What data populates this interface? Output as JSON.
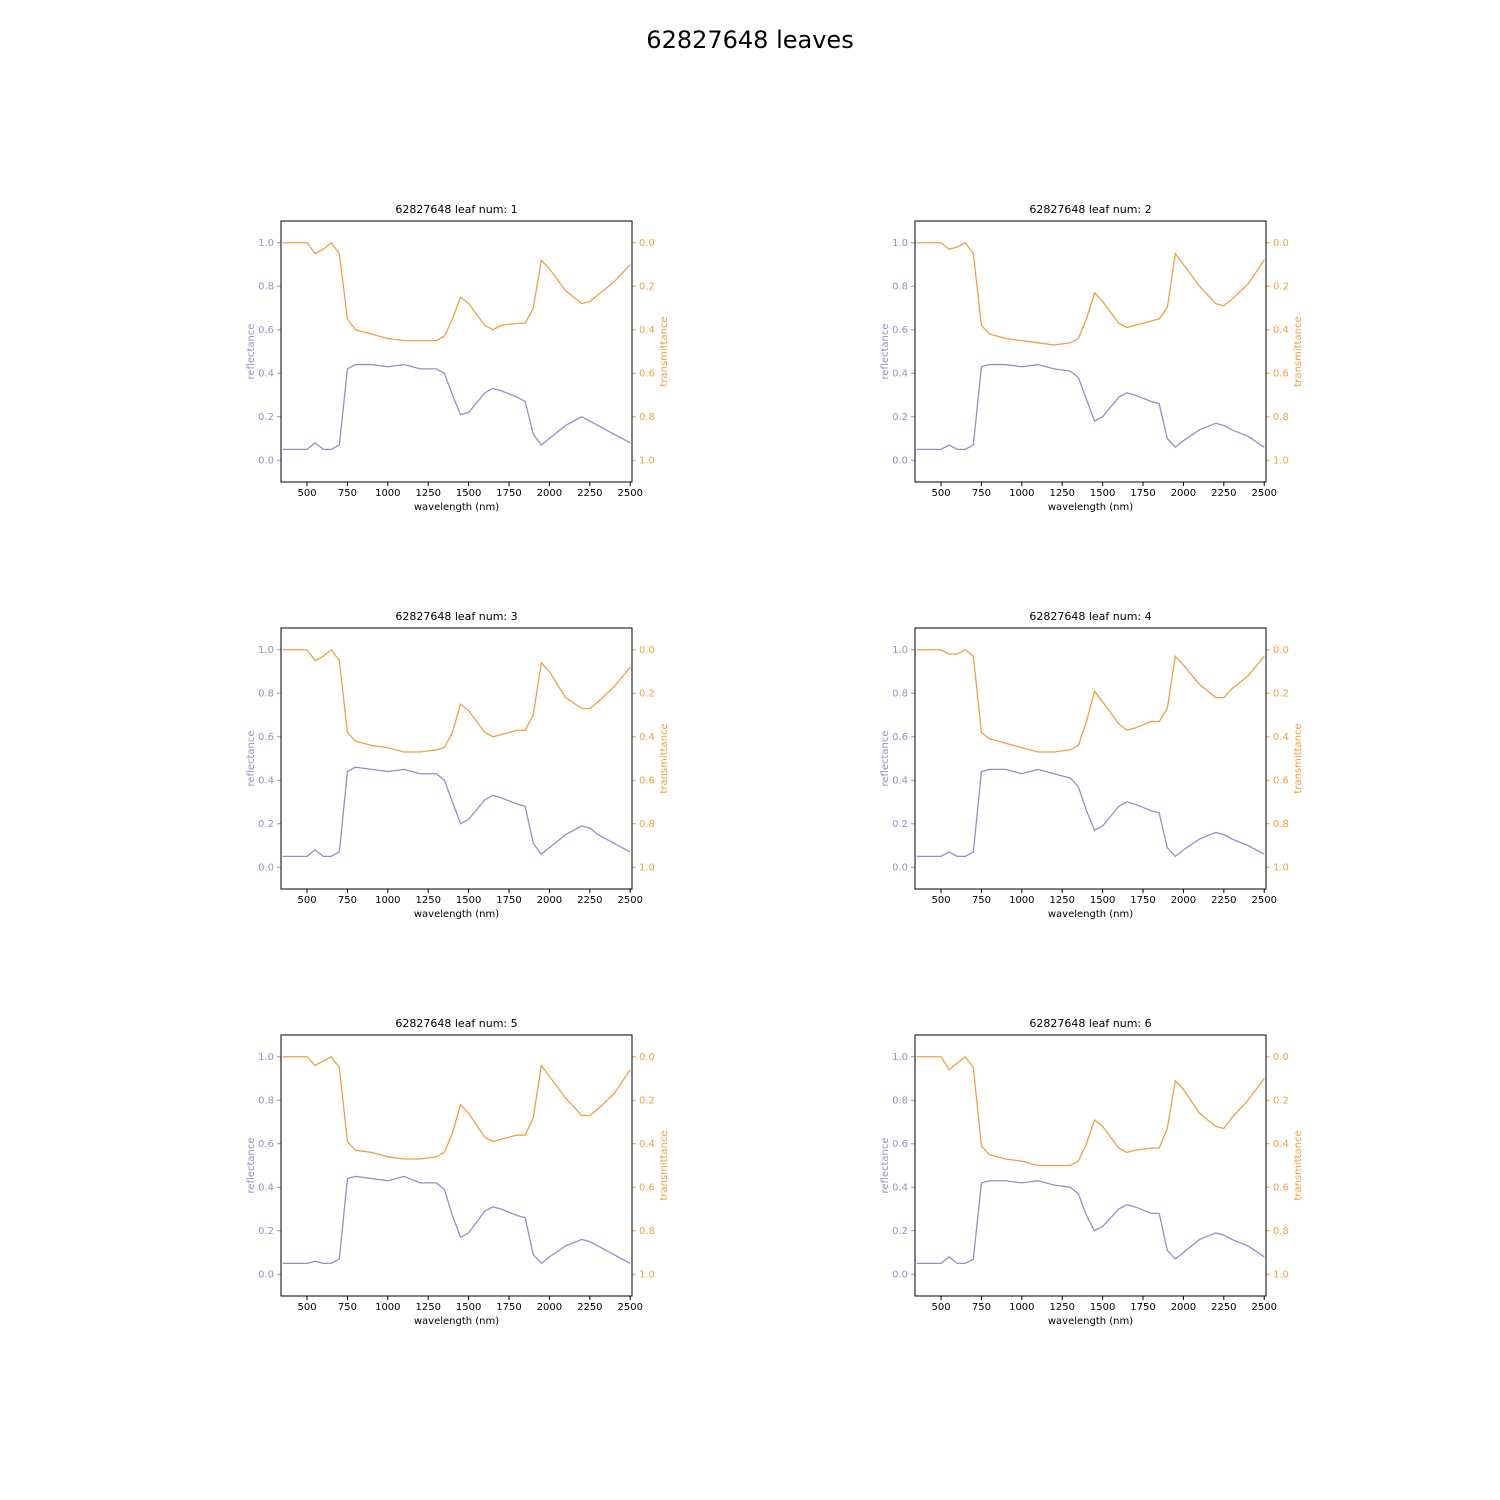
{
  "title": "62827648 leaves",
  "chart_data": [
    {
      "type": "line",
      "title": "62827648 leaf num: 1",
      "xlabel": "wavelength (nm)",
      "ylabel": "reflectance",
      "y2label": "transmittance",
      "x": [
        350,
        450,
        500,
        550,
        600,
        650,
        700,
        750,
        800,
        900,
        1000,
        1100,
        1200,
        1300,
        1350,
        1400,
        1450,
        1500,
        1600,
        1650,
        1700,
        1800,
        1850,
        1900,
        1950,
        2000,
        2100,
        2200,
        2250,
        2300,
        2400,
        2500
      ],
      "series": [
        {
          "color": "#9490c6",
          "values": [
            0.05,
            0.05,
            0.05,
            0.08,
            0.05,
            0.05,
            0.07,
            0.42,
            0.44,
            0.44,
            0.43,
            0.44,
            0.42,
            0.42,
            0.4,
            0.3,
            0.21,
            0.22,
            0.31,
            0.33,
            0.32,
            0.29,
            0.27,
            0.12,
            0.07,
            0.1,
            0.16,
            0.2,
            0.18,
            0.16,
            0.12,
            0.08
          ]
        },
        {
          "color": "#f0a040",
          "axis": "y2",
          "values": [
            0.0,
            0.0,
            0.0,
            0.05,
            0.03,
            0.0,
            0.05,
            0.35,
            0.4,
            0.42,
            0.44,
            0.45,
            0.45,
            0.45,
            0.43,
            0.35,
            0.25,
            0.28,
            0.38,
            0.4,
            0.38,
            0.37,
            0.37,
            0.3,
            0.08,
            0.12,
            0.22,
            0.28,
            0.27,
            0.24,
            0.18,
            0.1
          ]
        }
      ],
      "xlim": [
        339,
        2511
      ],
      "xticks": [
        500,
        750,
        1000,
        1250,
        1500,
        1750,
        2000,
        2250,
        2500
      ],
      "ylim": [
        -0.1,
        1.1
      ],
      "yticks": [
        {
          "value": 0,
          "label": "0.0"
        },
        0.2,
        0.4,
        0.6,
        0.8,
        {
          "value": 1,
          "label": "1.0"
        }
      ],
      "y2lim": [
        1.1,
        -0.1
      ],
      "y2ticks": [
        {
          "value": 0,
          "label": "0.0"
        },
        0.2,
        0.4,
        0.6,
        0.8,
        {
          "value": 1,
          "label": "1.0"
        }
      ]
    },
    {
      "type": "line",
      "title": "62827648 leaf num: 2",
      "xlabel": "wavelength (nm)",
      "ylabel": "reflectance",
      "y2label": "transmittance",
      "x": [
        350,
        450,
        500,
        550,
        600,
        650,
        700,
        750,
        800,
        900,
        1000,
        1100,
        1200,
        1300,
        1350,
        1400,
        1450,
        1500,
        1600,
        1650,
        1700,
        1800,
        1850,
        1900,
        1950,
        2000,
        2100,
        2200,
        2250,
        2300,
        2400,
        2500
      ],
      "series": [
        {
          "color": "#9490c6",
          "values": [
            0.05,
            0.05,
            0.05,
            0.07,
            0.05,
            0.05,
            0.07,
            0.43,
            0.44,
            0.44,
            0.43,
            0.44,
            0.42,
            0.41,
            0.38,
            0.28,
            0.18,
            0.2,
            0.29,
            0.31,
            0.3,
            0.27,
            0.26,
            0.1,
            0.06,
            0.09,
            0.14,
            0.17,
            0.16,
            0.14,
            0.11,
            0.06
          ]
        },
        {
          "color": "#f0a040",
          "axis": "y2",
          "values": [
            0.0,
            0.0,
            0.0,
            0.03,
            0.02,
            0.0,
            0.05,
            0.38,
            0.42,
            0.44,
            0.45,
            0.46,
            0.47,
            0.46,
            0.44,
            0.35,
            0.23,
            0.27,
            0.37,
            0.39,
            0.38,
            0.36,
            0.35,
            0.3,
            0.05,
            0.1,
            0.2,
            0.28,
            0.29,
            0.26,
            0.19,
            0.08
          ]
        }
      ],
      "xlim": [
        339,
        2511
      ],
      "xticks": [
        500,
        750,
        1000,
        1250,
        1500,
        1750,
        2000,
        2250,
        2500
      ],
      "ylim": [
        -0.1,
        1.1
      ],
      "yticks": [
        {
          "value": 0,
          "label": "0.0"
        },
        0.2,
        0.4,
        0.6,
        0.8,
        {
          "value": 1,
          "label": "1.0"
        }
      ],
      "y2lim": [
        1.1,
        -0.1
      ],
      "y2ticks": [
        {
          "value": 0,
          "label": "0.0"
        },
        0.2,
        0.4,
        0.6,
        0.8,
        {
          "value": 1,
          "label": "1.0"
        }
      ]
    },
    {
      "type": "line",
      "title": "62827648 leaf num: 3",
      "xlabel": "wavelength (nm)",
      "ylabel": "reflectance",
      "y2label": "transmittance",
      "x": [
        350,
        450,
        500,
        550,
        600,
        650,
        700,
        750,
        800,
        900,
        1000,
        1100,
        1200,
        1300,
        1350,
        1400,
        1450,
        1500,
        1600,
        1650,
        1700,
        1800,
        1850,
        1900,
        1950,
        2000,
        2100,
        2200,
        2250,
        2300,
        2400,
        2500
      ],
      "series": [
        {
          "color": "#9490c6",
          "values": [
            0.05,
            0.05,
            0.05,
            0.08,
            0.05,
            0.05,
            0.07,
            0.44,
            0.46,
            0.45,
            0.44,
            0.45,
            0.43,
            0.43,
            0.4,
            0.3,
            0.2,
            0.22,
            0.31,
            0.33,
            0.32,
            0.29,
            0.28,
            0.11,
            0.06,
            0.09,
            0.15,
            0.19,
            0.18,
            0.15,
            0.11,
            0.07
          ]
        },
        {
          "color": "#f0a040",
          "axis": "y2",
          "values": [
            0.0,
            0.0,
            0.0,
            0.05,
            0.03,
            0.0,
            0.05,
            0.38,
            0.42,
            0.44,
            0.45,
            0.47,
            0.47,
            0.46,
            0.45,
            0.38,
            0.25,
            0.28,
            0.38,
            0.4,
            0.39,
            0.37,
            0.37,
            0.3,
            0.06,
            0.1,
            0.22,
            0.27,
            0.27,
            0.24,
            0.17,
            0.08
          ]
        }
      ],
      "xlim": [
        339,
        2511
      ],
      "xticks": [
        500,
        750,
        1000,
        1250,
        1500,
        1750,
        2000,
        2250,
        2500
      ],
      "ylim": [
        -0.1,
        1.1
      ],
      "yticks": [
        {
          "value": 0,
          "label": "0.0"
        },
        0.2,
        0.4,
        0.6,
        0.8,
        {
          "value": 1,
          "label": "1.0"
        }
      ],
      "y2lim": [
        1.1,
        -0.1
      ],
      "y2ticks": [
        {
          "value": 0,
          "label": "0.0"
        },
        0.2,
        0.4,
        0.6,
        0.8,
        {
          "value": 1,
          "label": "1.0"
        }
      ]
    },
    {
      "type": "line",
      "title": "62827648 leaf num: 4",
      "xlabel": "wavelength (nm)",
      "ylabel": "reflectance",
      "y2label": "transmittance",
      "x": [
        350,
        450,
        500,
        550,
        600,
        650,
        700,
        750,
        800,
        900,
        1000,
        1100,
        1200,
        1300,
        1350,
        1400,
        1450,
        1500,
        1600,
        1650,
        1700,
        1800,
        1850,
        1900,
        1950,
        2000,
        2100,
        2200,
        2250,
        2300,
        2400,
        2500
      ],
      "series": [
        {
          "color": "#9490c6",
          "values": [
            0.05,
            0.05,
            0.05,
            0.07,
            0.05,
            0.05,
            0.07,
            0.44,
            0.45,
            0.45,
            0.43,
            0.45,
            0.43,
            0.41,
            0.37,
            0.26,
            0.17,
            0.19,
            0.28,
            0.3,
            0.29,
            0.26,
            0.25,
            0.09,
            0.05,
            0.08,
            0.13,
            0.16,
            0.15,
            0.13,
            0.1,
            0.06
          ]
        },
        {
          "color": "#f0a040",
          "axis": "y2",
          "values": [
            0.0,
            0.0,
            0.0,
            0.02,
            0.02,
            0.0,
            0.03,
            0.38,
            0.41,
            0.43,
            0.45,
            0.47,
            0.47,
            0.46,
            0.44,
            0.33,
            0.19,
            0.24,
            0.34,
            0.37,
            0.36,
            0.33,
            0.33,
            0.27,
            0.03,
            0.07,
            0.16,
            0.22,
            0.22,
            0.18,
            0.12,
            0.03
          ]
        }
      ],
      "xlim": [
        339,
        2511
      ],
      "xticks": [
        500,
        750,
        1000,
        1250,
        1500,
        1750,
        2000,
        2250,
        2500
      ],
      "ylim": [
        -0.1,
        1.1
      ],
      "yticks": [
        {
          "value": 0,
          "label": "0.0"
        },
        0.2,
        0.4,
        0.6,
        0.8,
        {
          "value": 1,
          "label": "1.0"
        }
      ],
      "y2lim": [
        1.1,
        -0.1
      ],
      "y2ticks": [
        {
          "value": 0,
          "label": "0.0"
        },
        0.2,
        0.4,
        0.6,
        0.8,
        {
          "value": 1,
          "label": "1.0"
        }
      ]
    },
    {
      "type": "line",
      "title": "62827648 leaf num: 5",
      "xlabel": "wavelength (nm)",
      "ylabel": "reflectance",
      "y2label": "transmittance",
      "x": [
        350,
        450,
        500,
        550,
        600,
        650,
        700,
        750,
        800,
        900,
        1000,
        1100,
        1200,
        1300,
        1350,
        1400,
        1450,
        1500,
        1600,
        1650,
        1700,
        1800,
        1850,
        1900,
        1950,
        2000,
        2100,
        2200,
        2250,
        2300,
        2400,
        2500
      ],
      "series": [
        {
          "color": "#9490c6",
          "values": [
            0.05,
            0.05,
            0.05,
            0.06,
            0.05,
            0.05,
            0.07,
            0.44,
            0.45,
            0.44,
            0.43,
            0.45,
            0.42,
            0.42,
            0.39,
            0.27,
            0.17,
            0.19,
            0.29,
            0.31,
            0.3,
            0.27,
            0.26,
            0.09,
            0.05,
            0.08,
            0.13,
            0.16,
            0.15,
            0.13,
            0.09,
            0.05
          ]
        },
        {
          "color": "#f0a040",
          "axis": "y2",
          "values": [
            0.0,
            0.0,
            0.0,
            0.04,
            0.02,
            0.0,
            0.05,
            0.39,
            0.43,
            0.44,
            0.46,
            0.47,
            0.47,
            0.46,
            0.44,
            0.35,
            0.22,
            0.26,
            0.37,
            0.39,
            0.38,
            0.36,
            0.36,
            0.28,
            0.04,
            0.09,
            0.19,
            0.27,
            0.27,
            0.24,
            0.17,
            0.06
          ]
        }
      ],
      "xlim": [
        339,
        2511
      ],
      "xticks": [
        500,
        750,
        1000,
        1250,
        1500,
        1750,
        2000,
        2250,
        2500
      ],
      "ylim": [
        -0.1,
        1.1
      ],
      "yticks": [
        {
          "value": 0,
          "label": "0.0"
        },
        0.2,
        0.4,
        0.6,
        0.8,
        {
          "value": 1,
          "label": "1.0"
        }
      ],
      "y2lim": [
        1.1,
        -0.1
      ],
      "y2ticks": [
        {
          "value": 0,
          "label": "0.0"
        },
        0.2,
        0.4,
        0.6,
        0.8,
        {
          "value": 1,
          "label": "1.0"
        }
      ]
    },
    {
      "type": "line",
      "title": "62827648 leaf num: 6",
      "xlabel": "wavelength (nm)",
      "ylabel": "reflectance",
      "y2label": "transmittance",
      "x": [
        350,
        450,
        500,
        550,
        600,
        650,
        700,
        750,
        800,
        900,
        1000,
        1100,
        1200,
        1300,
        1350,
        1400,
        1450,
        1500,
        1600,
        1650,
        1700,
        1800,
        1850,
        1900,
        1950,
        2000,
        2100,
        2200,
        2250,
        2300,
        2400,
        2500
      ],
      "series": [
        {
          "color": "#9490c6",
          "values": [
            0.05,
            0.05,
            0.05,
            0.08,
            0.05,
            0.05,
            0.07,
            0.42,
            0.43,
            0.43,
            0.42,
            0.43,
            0.41,
            0.4,
            0.37,
            0.27,
            0.2,
            0.22,
            0.3,
            0.32,
            0.31,
            0.28,
            0.28,
            0.11,
            0.07,
            0.1,
            0.16,
            0.19,
            0.18,
            0.16,
            0.13,
            0.08
          ]
        },
        {
          "color": "#f0a040",
          "axis": "y2",
          "values": [
            0.0,
            0.0,
            0.0,
            0.06,
            0.03,
            0.0,
            0.05,
            0.41,
            0.45,
            0.47,
            0.48,
            0.5,
            0.5,
            0.5,
            0.48,
            0.4,
            0.29,
            0.32,
            0.42,
            0.44,
            0.43,
            0.42,
            0.42,
            0.33,
            0.11,
            0.15,
            0.26,
            0.32,
            0.33,
            0.28,
            0.2,
            0.1
          ]
        }
      ],
      "xlim": [
        339,
        2511
      ],
      "xticks": [
        500,
        750,
        1000,
        1250,
        1500,
        1750,
        2000,
        2250,
        2500
      ],
      "ylim": [
        -0.1,
        1.1
      ],
      "yticks": [
        {
          "value": 0,
          "label": "0.0"
        },
        0.2,
        0.4,
        0.6,
        0.8,
        {
          "value": 1,
          "label": "1.0"
        }
      ],
      "y2lim": [
        1.1,
        -0.1
      ],
      "y2ticks": [
        {
          "value": 0,
          "label": "0.0"
        },
        0.2,
        0.4,
        0.6,
        0.8,
        {
          "value": 1,
          "label": "1.0"
        }
      ]
    }
  ]
}
